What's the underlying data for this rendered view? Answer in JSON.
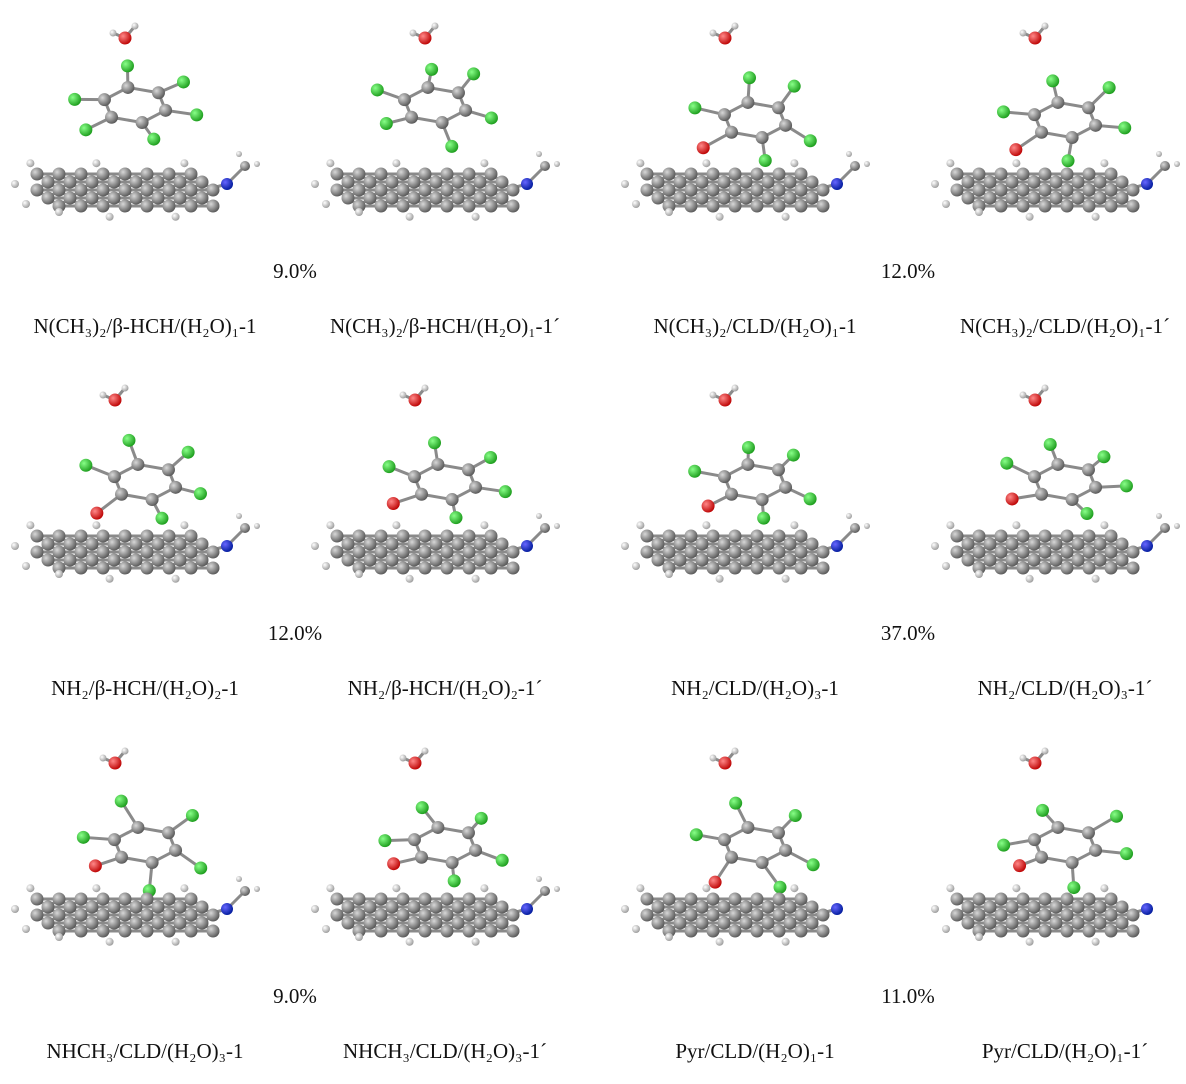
{
  "rows": [
    {
      "pairs": [
        {
          "percentage": "9.0%",
          "labels": [
            "N(CH₃)₂/β-HCH/(H₂O)₁-1",
            "N(CH₃)₂/β-HCH/(H₂O)₁-1´"
          ]
        },
        {
          "percentage": "12.0%",
          "labels": [
            "N(CH₃)₂/CLD/(H₂O)₁-1",
            "N(CH₃)₂/CLD/(H₂O)₁-1´"
          ]
        }
      ]
    },
    {
      "pairs": [
        {
          "percentage": "12.0%",
          "labels": [
            "NH₂/β-HCH/(H₂O)₂-1",
            "NH₂/β-HCH/(H₂O)₂-1´"
          ]
        },
        {
          "percentage": "37.0%",
          "labels": [
            "NH₂/CLD/(H₂O)₃-1",
            "NH₂/CLD/(H₂O)₃-1´"
          ]
        }
      ]
    },
    {
      "pairs": [
        {
          "percentage": "9.0%",
          "labels": [
            "NHCH₃/CLD/(H₂O)₃-1",
            "NHCH₃/CLD/(H₂O)₃-1´"
          ]
        },
        {
          "percentage": "11.0%",
          "labels": [
            "Pyr/CLD/(H₂O)₁-1",
            "Pyr/CLD/(H₂O)₁-1´"
          ]
        }
      ]
    }
  ]
}
